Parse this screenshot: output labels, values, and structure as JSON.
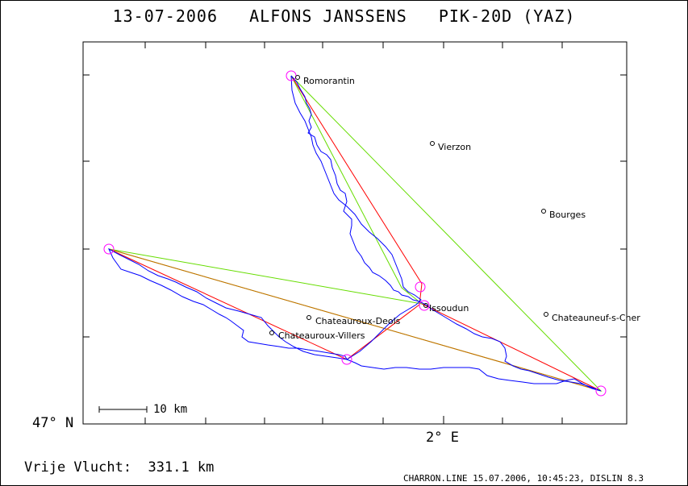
{
  "title": "13-07-2006   ALFONS JANSSENS   PIK-20D (YAZ)",
  "axes": {
    "lat_label": "47° N",
    "lon_label": "2° E"
  },
  "scale_label": "10 km",
  "distance_label": "Vrije Vlucht:  331.1 km",
  "credit": "CHARRON.LINE 15.07.2006, 10:45:23, DISLIN 8.3",
  "towns": [
    {
      "name": "Romorantin"
    },
    {
      "name": "Vierzon"
    },
    {
      "name": "Bourges"
    },
    {
      "name": "Issoudun"
    },
    {
      "name": "Chateauroux-Deols"
    },
    {
      "name": "Chateauroux-Villers"
    },
    {
      "name": "Chateauneuf-s-Cher"
    }
  ],
  "colors": {
    "track": "#0000ff",
    "triangle_red": "#ff0000",
    "triangle_green": "#66dd00",
    "triangle_orange": "#cc6600",
    "turnpoint": "#ff00ff"
  }
}
